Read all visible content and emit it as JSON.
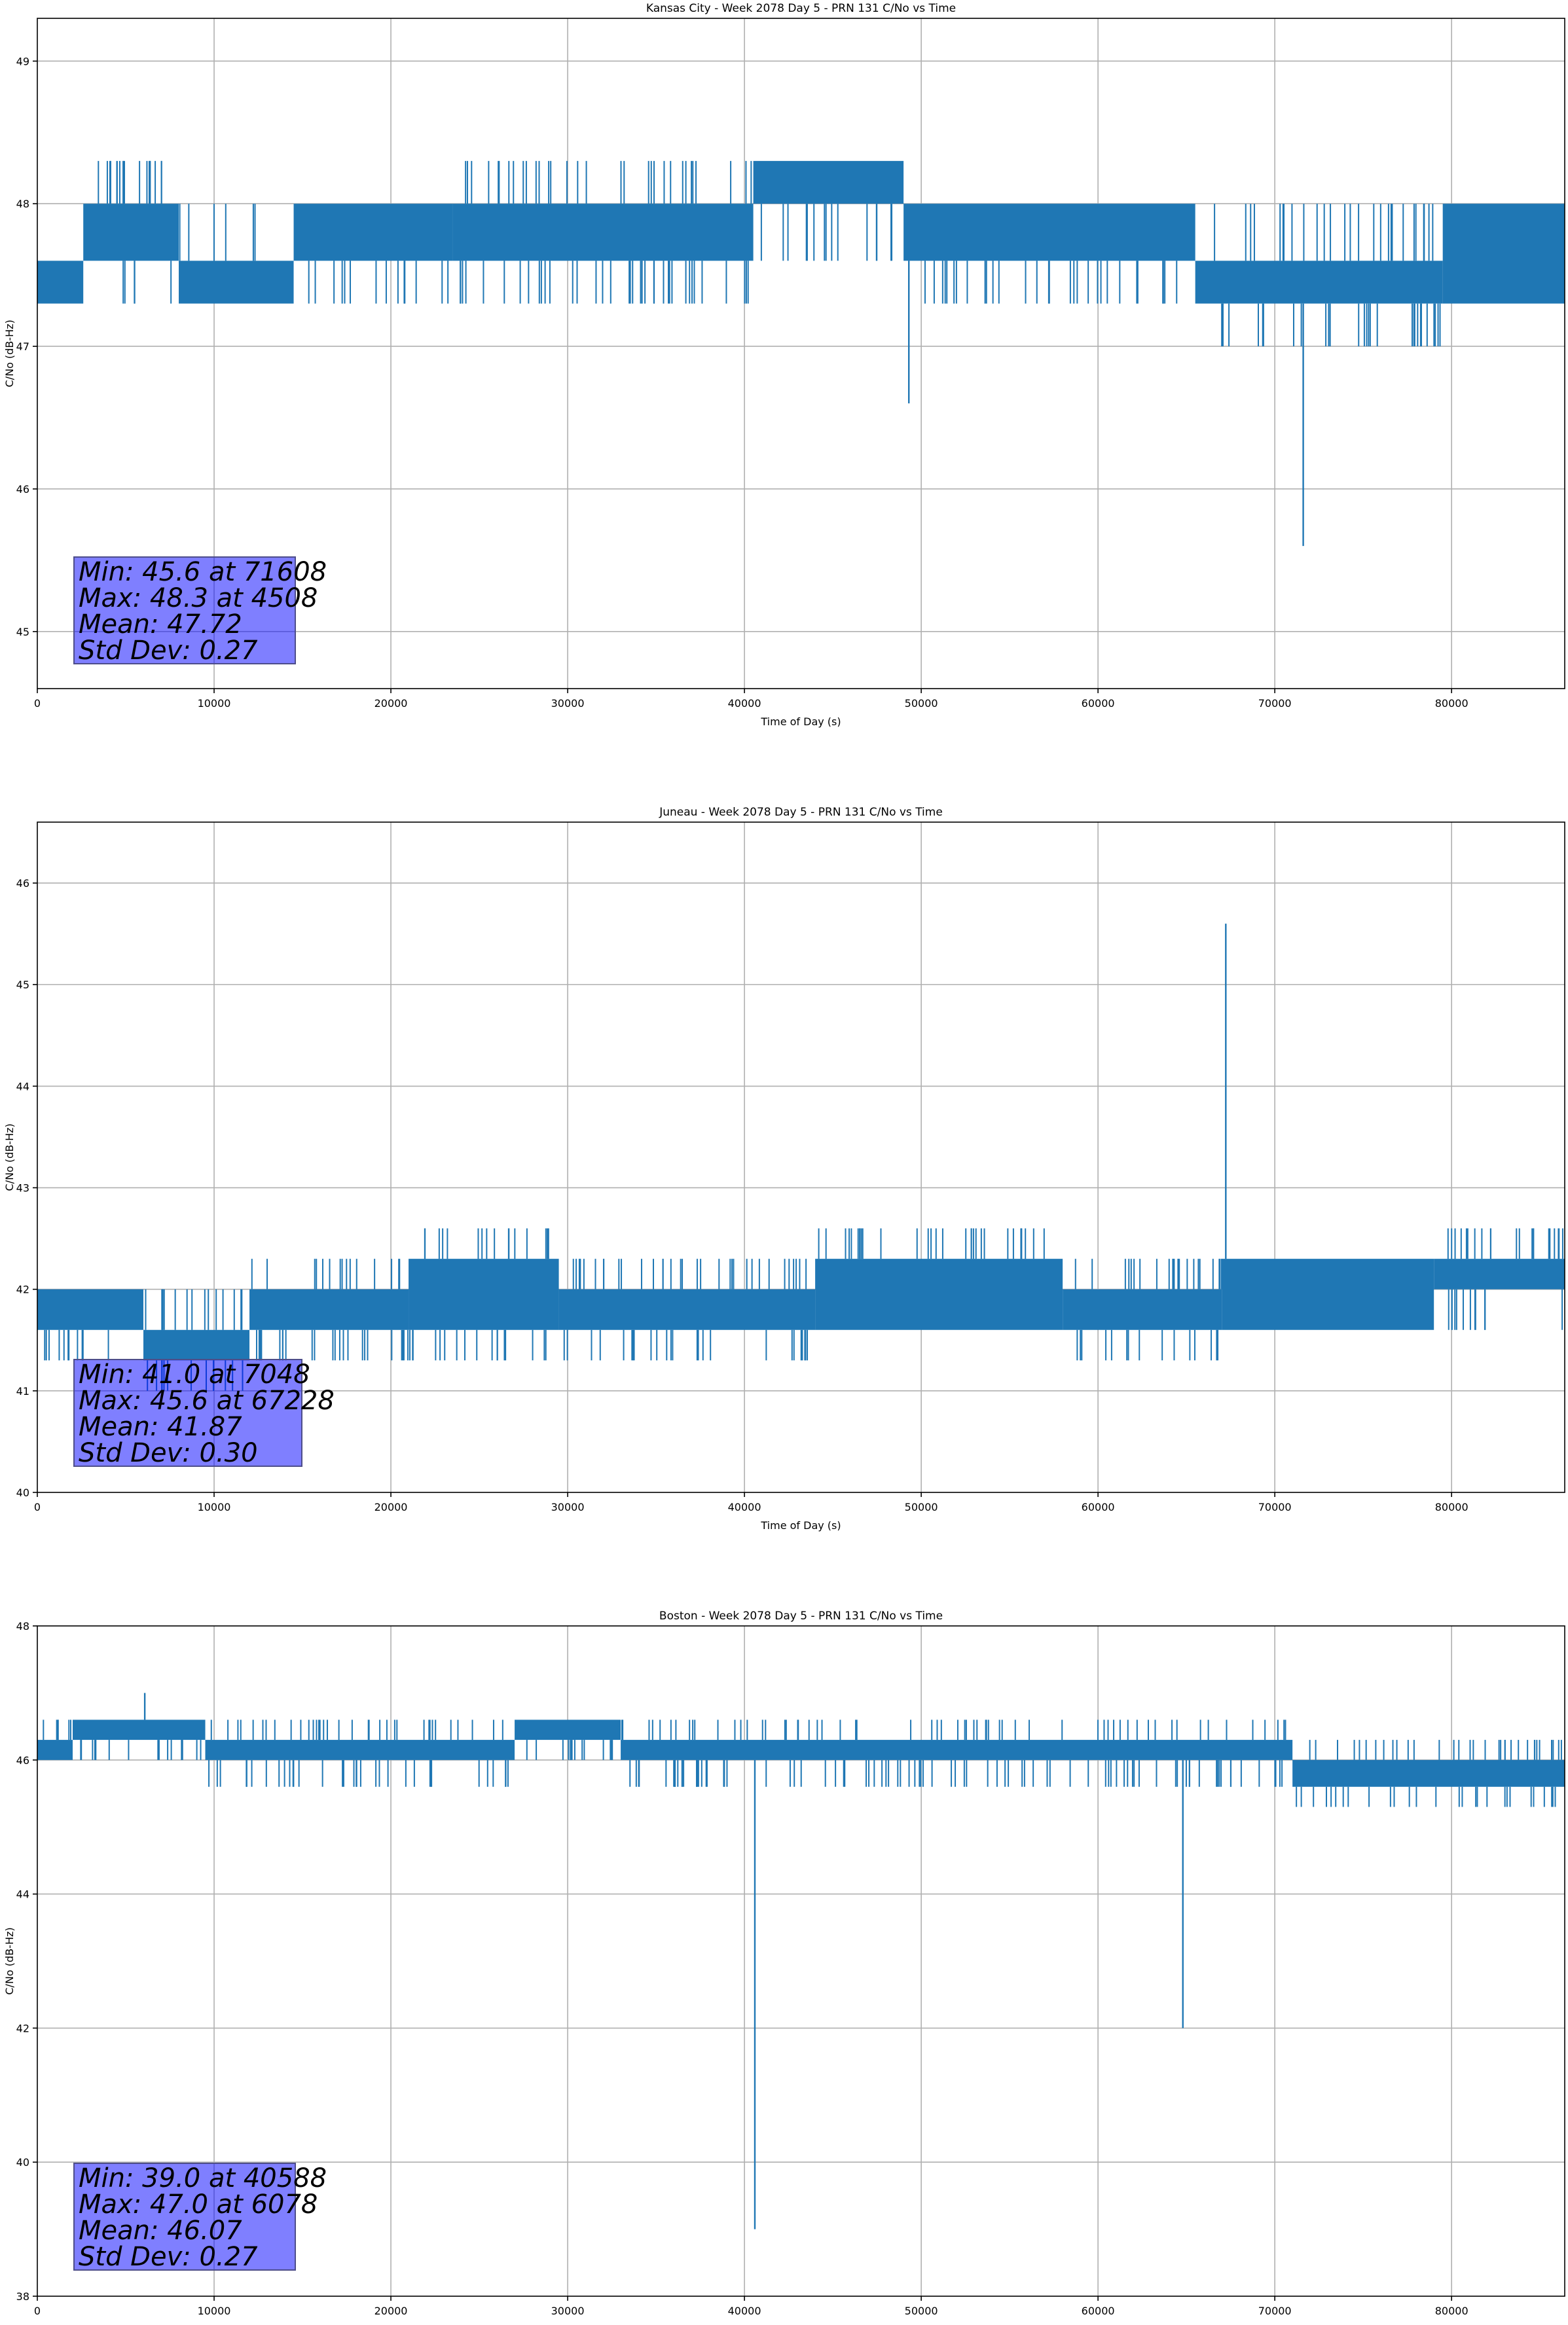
{
  "figure": {
    "background": "#ffffff"
  },
  "style": {
    "line_color": "#1f77b4",
    "grid_color": "#b0b0b0",
    "stats_box_color": "#0000ff"
  },
  "chart_data": [
    {
      "type": "line",
      "title": "Kansas City - Week 2078 Day 5 - PRN 131 C/No vs Time",
      "xlabel": "Time of Day (s)",
      "ylabel": "C/No (dB-Hz)",
      "xlim": [
        0,
        86400
      ],
      "ylim": [
        44.6,
        49.3
      ],
      "xticks": [
        0,
        10000,
        20000,
        30000,
        40000,
        50000,
        60000,
        70000,
        80000
      ],
      "yticks": [
        45,
        46,
        47,
        48,
        49
      ],
      "grid": true,
      "series": [
        {
          "segments": [
            {
              "x0": 0,
              "x1": 2600,
              "low": 47.3,
              "high": 47.6,
              "spike_high": 47.6,
              "spike_low": 47.3
            },
            {
              "x0": 2600,
              "x1": 8000,
              "low": 47.6,
              "high": 48.0,
              "spike_high": 48.3,
              "spike_low": 47.3
            },
            {
              "x0": 8000,
              "x1": 14500,
              "low": 47.3,
              "high": 47.6,
              "spike_high": 48.0,
              "spike_low": 47.3
            },
            {
              "x0": 14500,
              "x1": 23500,
              "low": 47.6,
              "high": 48.0,
              "spike_high": 48.0,
              "spike_low": 47.3
            },
            {
              "x0": 23500,
              "x1": 40500,
              "low": 47.6,
              "high": 48.0,
              "spike_high": 48.3,
              "spike_low": 47.3
            },
            {
              "x0": 40500,
              "x1": 49000,
              "low": 48.0,
              "high": 48.3,
              "spike_high": 48.3,
              "spike_low": 47.6
            },
            {
              "x0": 49000,
              "x1": 65500,
              "low": 47.6,
              "high": 48.0,
              "spike_high": 48.0,
              "spike_low": 47.3
            },
            {
              "x0": 65500,
              "x1": 79500,
              "low": 47.3,
              "high": 47.6,
              "spike_high": 48.0,
              "spike_low": 47.0
            },
            {
              "x0": 79500,
              "x1": 86400,
              "low": 47.3,
              "high": 48.0,
              "spike_high": 48.0,
              "spike_low": 47.3
            }
          ],
          "dips": [
            {
              "x": 49300,
              "y": 46.6
            },
            {
              "x": 71608,
              "y": 45.6
            }
          ],
          "peaks": [
            {
              "x": 4508,
              "y": 48.3
            }
          ]
        }
      ],
      "stats": [
        "Min: 45.6 at 71608",
        "Max: 48.3 at 4508",
        "Mean: 47.72",
        "Std Dev: 0.27"
      ]
    },
    {
      "type": "line",
      "title": "Juneau - Week 2078 Day 5 - PRN 131 C/No vs Time",
      "xlabel": "Time of Day (s)",
      "ylabel": "C/No (dB-Hz)",
      "xlim": [
        0,
        86400
      ],
      "ylim": [
        40.0,
        46.6
      ],
      "xticks": [
        0,
        10000,
        20000,
        30000,
        40000,
        50000,
        60000,
        70000,
        80000
      ],
      "yticks": [
        40,
        41,
        42,
        43,
        44,
        45,
        46
      ],
      "grid": true,
      "series": [
        {
          "segments": [
            {
              "x0": 0,
              "x1": 6000,
              "low": 41.6,
              "high": 42.0,
              "spike_high": 42.0,
              "spike_low": 41.3
            },
            {
              "x0": 6000,
              "x1": 12000,
              "low": 41.3,
              "high": 41.6,
              "spike_high": 42.0,
              "spike_low": 41.0
            },
            {
              "x0": 12000,
              "x1": 21000,
              "low": 41.6,
              "high": 42.0,
              "spike_high": 42.3,
              "spike_low": 41.3
            },
            {
              "x0": 21000,
              "x1": 29500,
              "low": 41.6,
              "high": 42.3,
              "spike_high": 42.6,
              "spike_low": 41.3
            },
            {
              "x0": 29500,
              "x1": 44000,
              "low": 41.6,
              "high": 42.0,
              "spike_high": 42.3,
              "spike_low": 41.3
            },
            {
              "x0": 44000,
              "x1": 58000,
              "low": 41.6,
              "high": 42.3,
              "spike_high": 42.6,
              "spike_low": 41.6
            },
            {
              "x0": 58000,
              "x1": 67000,
              "low": 41.6,
              "high": 42.0,
              "spike_high": 42.3,
              "spike_low": 41.3
            },
            {
              "x0": 67000,
              "x1": 79000,
              "low": 41.6,
              "high": 42.3,
              "spike_high": 42.3,
              "spike_low": 41.6
            },
            {
              "x0": 79000,
              "x1": 86400,
              "low": 42.0,
              "high": 42.3,
              "spike_high": 42.6,
              "spike_low": 41.6
            }
          ],
          "dips": [
            {
              "x": 7048,
              "y": 41.0
            }
          ],
          "peaks": [
            {
              "x": 67228,
              "y": 45.6
            }
          ]
        }
      ],
      "stats": [
        "Min: 41.0 at 7048",
        "Max: 45.6 at 67228",
        "Mean: 41.87",
        "Std Dev: 0.30"
      ]
    },
    {
      "type": "line",
      "title": "Boston - Week 2078 Day 5 - PRN 131 C/No vs Time",
      "xlabel": "Time of Day (s)",
      "ylabel": "C/No (dB-Hz)",
      "xlim": [
        0,
        86400
      ],
      "ylim": [
        38.0,
        48.0
      ],
      "xticks": [
        0,
        10000,
        20000,
        30000,
        40000,
        50000,
        60000,
        70000,
        80000
      ],
      "yticks": [
        38,
        40,
        42,
        44,
        46,
        48
      ],
      "grid": true,
      "series": [
        {
          "segments": [
            {
              "x0": 0,
              "x1": 2000,
              "low": 46.0,
              "high": 46.3,
              "spike_high": 46.6,
              "spike_low": 46.0
            },
            {
              "x0": 2000,
              "x1": 9500,
              "low": 46.3,
              "high": 46.6,
              "spike_high": 46.6,
              "spike_low": 46.0
            },
            {
              "x0": 9500,
              "x1": 27000,
              "low": 46.0,
              "high": 46.3,
              "spike_high": 46.6,
              "spike_low": 45.6
            },
            {
              "x0": 27000,
              "x1": 33000,
              "low": 46.3,
              "high": 46.6,
              "spike_high": 46.6,
              "spike_low": 46.0
            },
            {
              "x0": 33000,
              "x1": 71000,
              "low": 46.0,
              "high": 46.3,
              "spike_high": 46.6,
              "spike_low": 45.6
            },
            {
              "x0": 71000,
              "x1": 86400,
              "low": 45.6,
              "high": 46.0,
              "spike_high": 46.3,
              "spike_low": 45.3
            }
          ],
          "dips": [
            {
              "x": 40588,
              "y": 39.0
            },
            {
              "x": 64800,
              "y": 42.0
            }
          ],
          "peaks": [
            {
              "x": 6078,
              "y": 47.0
            }
          ]
        }
      ],
      "stats": [
        "Min: 39.0 at 40588",
        "Max: 47.0 at 6078",
        "Mean: 46.07",
        "Std Dev: 0.27"
      ]
    }
  ]
}
